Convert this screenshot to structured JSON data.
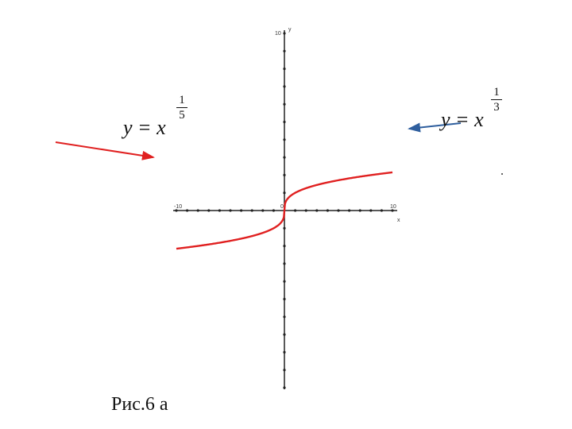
{
  "chart_data": {
    "type": "line",
    "title": "",
    "xlabel": "x",
    "ylabel": "y",
    "xlim": [
      -10,
      10
    ],
    "ylim": [
      -10,
      10
    ],
    "x_tick_labels": [
      "-10",
      "0",
      "10"
    ],
    "y_tick_labels": [
      "10"
    ],
    "grid": false,
    "series": [
      {
        "color": "#e02020",
        "function": "cbrt",
        "x": [
          -10,
          -8,
          -6,
          -4,
          -2,
          -1,
          -0.5,
          -0.1,
          0,
          0.1,
          0.5,
          1,
          2,
          4,
          6,
          8,
          10
        ],
        "y": [
          -2.15,
          -2.0,
          -1.82,
          -1.59,
          -1.26,
          -1.0,
          -0.79,
          -0.46,
          0,
          0.46,
          0.79,
          1.0,
          1.26,
          1.59,
          1.82,
          2.0,
          2.15
        ]
      }
    ],
    "annotations": [
      {
        "id": "fifth-root",
        "lhs": "y = x",
        "exp_num": "1",
        "exp_den": "5",
        "arrow_color": "#e02020"
      },
      {
        "id": "cube-root",
        "lhs": "y = x",
        "exp_num": "1",
        "exp_den": "3",
        "arrow_color": "#2f5f9e"
      }
    ]
  },
  "caption": "Рис.6 а",
  "colors": {
    "axis": "#222222",
    "curve": "#e02020",
    "arrow_blue": "#2f5f9e",
    "arrow_red": "#e02020"
  }
}
